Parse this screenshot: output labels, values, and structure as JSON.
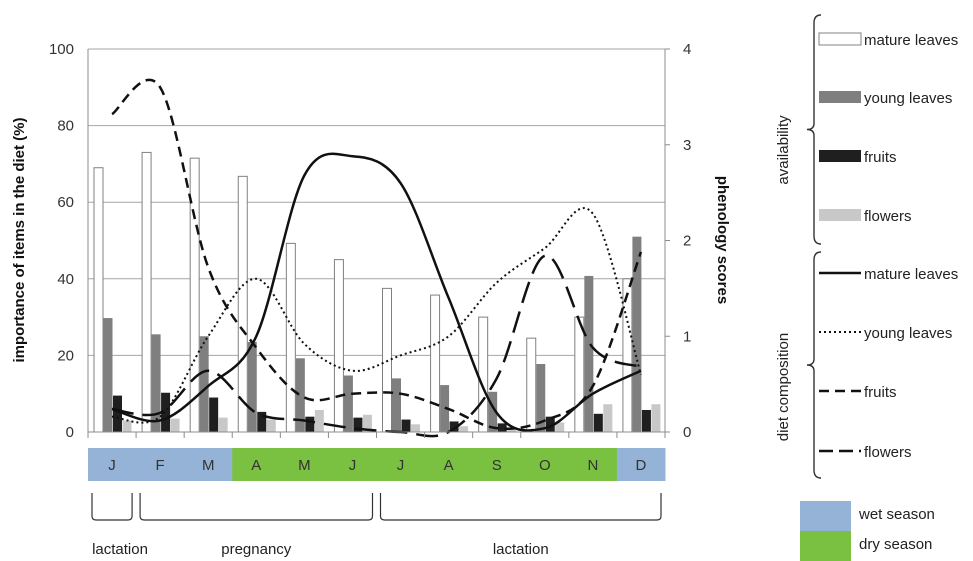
{
  "chart_data": {
    "type": "bar+line",
    "categories": [
      "J",
      "F",
      "M",
      "A",
      "M",
      "J",
      "J",
      "A",
      "S",
      "O",
      "N",
      "D"
    ],
    "y_left": {
      "label": "importance of items in the diet (%)",
      "ylim": [
        0,
        100
      ],
      "ticks": [
        0,
        20,
        40,
        60,
        80,
        100
      ]
    },
    "y_right": {
      "label": "phenology scores",
      "ylim": [
        0,
        4
      ],
      "ticks": [
        0,
        1,
        2,
        3,
        4
      ]
    },
    "grid": true,
    "bar_series": [
      {
        "name": "mature leaves",
        "color": "#ffffff",
        "values": [
          2.76,
          2.92,
          2.86,
          2.67,
          1.97,
          1.8,
          1.5,
          1.43,
          1.2,
          0.98,
          1.2,
          1.6
        ]
      },
      {
        "name": "young leaves",
        "color": "#7f7f7f",
        "values": [
          1.19,
          1.02,
          1.0,
          0.94,
          0.77,
          0.59,
          0.56,
          0.49,
          0.42,
          0.71,
          1.63,
          2.04
        ]
      },
      {
        "name": "fruits",
        "color": "#1f1f1f",
        "values": [
          0.38,
          0.41,
          0.36,
          0.21,
          0.16,
          0.15,
          0.13,
          0.11,
          0.09,
          0.16,
          0.19,
          0.23
        ]
      },
      {
        "name": "flowers",
        "color": "#c8c8c8",
        "values": [
          0.12,
          0.14,
          0.15,
          0.13,
          0.23,
          0.18,
          0.08,
          0.06,
          0.04,
          0.1,
          0.29,
          0.29
        ]
      }
    ],
    "line_series": [
      {
        "name": "mature leaves",
        "style": "solid",
        "values": [
          6,
          3,
          12,
          25,
          67,
          72,
          65,
          35,
          5,
          1,
          10,
          16
        ]
      },
      {
        "name": "young leaves",
        "style": "dotted",
        "values": [
          4,
          4,
          25,
          40,
          23,
          16,
          20,
          25,
          39,
          48,
          57,
          15
        ]
      },
      {
        "name": "fruits",
        "style": "dashed",
        "values": [
          83,
          90,
          43,
          22,
          9,
          10,
          10,
          6,
          1,
          3,
          12,
          47
        ]
      },
      {
        "name": "flowers",
        "style": "long-dashed",
        "values": [
          6,
          5,
          16,
          5,
          3,
          1,
          0,
          0,
          14,
          46,
          22,
          17
        ]
      }
    ],
    "legend": {
      "availability_label": "availability",
      "diet_label": "diet composition",
      "season_items": [
        {
          "name": "wet season",
          "color": "#95b3d7"
        },
        {
          "name": "dry season",
          "color": "#7ac142"
        }
      ]
    },
    "season_strip": [
      "wet season",
      "wet season",
      "wet season",
      "dry season",
      "dry season",
      "dry season",
      "dry season",
      "dry season",
      "dry season",
      "dry season",
      "dry season",
      "wet season"
    ],
    "phases": [
      {
        "label": "lactation",
        "from": 0,
        "to": 0
      },
      {
        "label": "pregnancy",
        "from": 1,
        "to": 5
      },
      {
        "label": "lactation",
        "from": 6,
        "to": 11
      }
    ]
  }
}
